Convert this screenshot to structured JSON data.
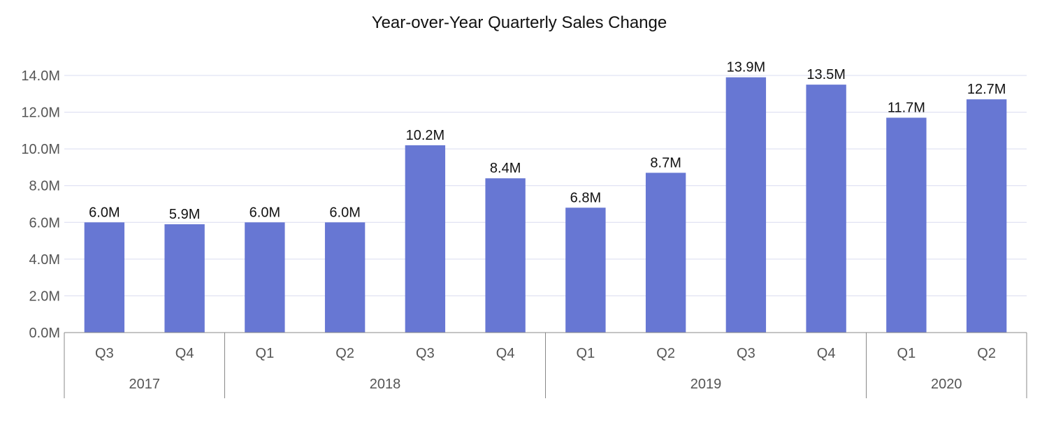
{
  "chart_data": {
    "type": "bar",
    "title": "Year-over-Year Quarterly Sales Change",
    "xlabel": "",
    "ylabel": "",
    "ylim": [
      0,
      14
    ],
    "yticks": [
      0,
      2,
      4,
      6,
      8,
      10,
      12,
      14
    ],
    "ytick_labels": [
      "0.0M",
      "2.0M",
      "4.0M",
      "6.0M",
      "8.0M",
      "10.0M",
      "12.0M",
      "14.0M"
    ],
    "grid": true,
    "legend": "none",
    "bar_color": "#6777d3",
    "categories": [
      "Q3",
      "Q4",
      "Q1",
      "Q2",
      "Q3",
      "Q4",
      "Q1",
      "Q2",
      "Q3",
      "Q4",
      "Q1",
      "Q2"
    ],
    "groups": [
      {
        "label": "2017",
        "count": 2
      },
      {
        "label": "2018",
        "count": 4
      },
      {
        "label": "2019",
        "count": 4
      },
      {
        "label": "2020",
        "count": 2
      }
    ],
    "values": [
      6.0,
      5.9,
      6.0,
      6.0,
      10.2,
      8.4,
      6.8,
      8.7,
      13.9,
      13.5,
      11.7,
      12.7
    ],
    "value_labels": [
      "6.0M",
      "5.9M",
      "6.0M",
      "6.0M",
      "10.2M",
      "8.4M",
      "6.8M",
      "8.7M",
      "13.9M",
      "13.5M",
      "11.7M",
      "12.7M"
    ]
  }
}
